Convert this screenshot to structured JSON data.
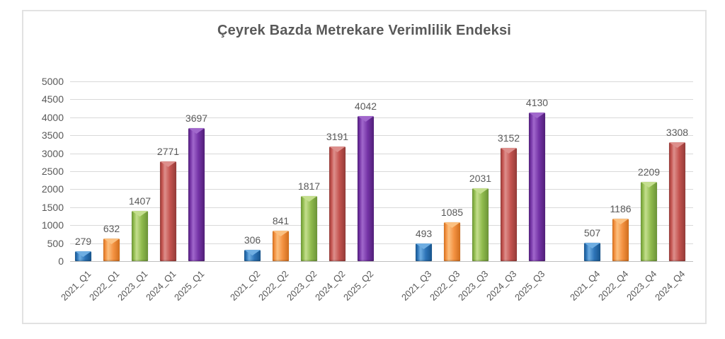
{
  "window": {
    "background_color": "#FFFFFF",
    "frame_border_color": "#E2E2E2"
  },
  "chart_data": {
    "type": "bar",
    "title": "Çeyrek Bazda Metrekare Verimlilik Endeksi",
    "xlabel": "",
    "ylabel": "",
    "ylim": [
      0,
      5000
    ],
    "ytick_step": 500,
    "yticks": [
      0,
      500,
      1000,
      1500,
      2000,
      2500,
      3000,
      3500,
      4000,
      4500,
      5000
    ],
    "grid": true,
    "legend_position": "none",
    "bar_style": "3d-beveled",
    "x_label_rotation_deg": 45,
    "data_labels_shown": true,
    "groups": [
      {
        "name": "Q1",
        "bars": [
          {
            "label": "2021_Q1",
            "series": "2021",
            "value": 279
          },
          {
            "label": "2022_Q1",
            "series": "2022",
            "value": 632
          },
          {
            "label": "2023_Q1",
            "series": "2023",
            "value": 1407
          },
          {
            "label": "2024_Q1",
            "series": "2024",
            "value": 2771
          },
          {
            "label": "2025_Q1",
            "series": "2025",
            "value": 3697
          }
        ]
      },
      {
        "name": "Q2",
        "bars": [
          {
            "label": "2021_Q2",
            "series": "2021",
            "value": 306
          },
          {
            "label": "2022_Q2",
            "series": "2022",
            "value": 841
          },
          {
            "label": "2023_Q2",
            "series": "2023",
            "value": 1817
          },
          {
            "label": "2024_Q2",
            "series": "2024",
            "value": 3191
          },
          {
            "label": "2025_Q2",
            "series": "2025",
            "value": 4042
          }
        ]
      },
      {
        "name": "Q3",
        "bars": [
          {
            "label": "2021_Q3",
            "series": "2021",
            "value": 493
          },
          {
            "label": "2022_Q3",
            "series": "2022",
            "value": 1085
          },
          {
            "label": "2023_Q3",
            "series": "2023",
            "value": 2031
          },
          {
            "label": "2024_Q3",
            "series": "2024",
            "value": 3152
          },
          {
            "label": "2025_Q3",
            "series": "2025",
            "value": 4130
          }
        ]
      },
      {
        "name": "Q4",
        "bars": [
          {
            "label": "2021_Q4",
            "series": "2021",
            "value": 507
          },
          {
            "label": "2022_Q4",
            "series": "2022",
            "value": 1186
          },
          {
            "label": "2023_Q4",
            "series": "2023",
            "value": 2209
          },
          {
            "label": "2024_Q4",
            "series": "2024",
            "value": 3308
          }
        ]
      }
    ],
    "series_colors": {
      "2021": {
        "base": "#2E75B8",
        "light": "#6FAEE2",
        "dark": "#17548C"
      },
      "2022": {
        "base": "#F49242",
        "light": "#FBC080",
        "dark": "#CF6E1D"
      },
      "2023": {
        "base": "#90BB4D",
        "light": "#C4DE8E",
        "dark": "#6B9337"
      },
      "2024": {
        "base": "#C4534F",
        "light": "#DD8F8C",
        "dark": "#933B38"
      },
      "2025": {
        "base": "#7433A6",
        "light": "#A168CC",
        "dark": "#511F78"
      }
    },
    "text_color": "#595959",
    "gridline_color": "#D9D9D9",
    "axis_line_color": "#BFBFBF"
  }
}
